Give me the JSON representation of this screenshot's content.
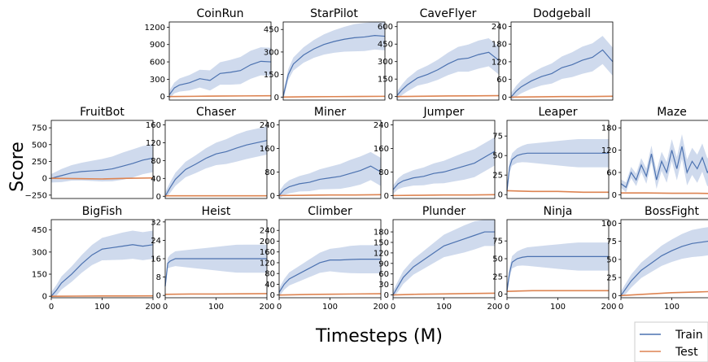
{
  "figure": {
    "ylabel": "Score",
    "xlabel": "Timesteps (M)"
  },
  "legend": {
    "placement": "bottom-right",
    "items": [
      {
        "label": "Train",
        "color": "#4c72b0"
      },
      {
        "label": "Test",
        "color": "#dd8452"
      }
    ]
  },
  "colors": {
    "train": "#4c72b0",
    "test": "#dd8452",
    "band": "#c7d3ea"
  },
  "chart_data": [
    {
      "type": "line",
      "title": "CoinRun",
      "xlim": [
        0,
        200
      ],
      "ylim": [
        -60,
        1290
      ],
      "xticks": [],
      "yticks": [
        0,
        300,
        600,
        900,
        1200
      ],
      "series": [
        {
          "name": "Train",
          "x": [
            0,
            10,
            20,
            40,
            60,
            80,
            100,
            120,
            140,
            160,
            180,
            200
          ],
          "y": [
            30,
            150,
            200,
            240,
            310,
            280,
            400,
            420,
            450,
            550,
            610,
            600
          ]
        },
        {
          "name": "Test",
          "x": [
            0,
            50,
            100,
            150,
            200
          ],
          "y": [
            0,
            5,
            10,
            12,
            15
          ]
        }
      ]
    },
    {
      "type": "line",
      "title": "StarPilot",
      "xlim": [
        0,
        200
      ],
      "ylim": [
        -20,
        500
      ],
      "xticks": [],
      "yticks": [
        0,
        150,
        300,
        450
      ],
      "series": [
        {
          "name": "Train",
          "x": [
            0,
            10,
            20,
            40,
            60,
            80,
            100,
            120,
            140,
            160,
            180,
            200
          ],
          "y": [
            5,
            150,
            220,
            280,
            320,
            350,
            370,
            385,
            395,
            400,
            410,
            405
          ]
        },
        {
          "name": "Test",
          "x": [
            0,
            50,
            100,
            150,
            200
          ],
          "y": [
            0,
            2,
            3,
            4,
            5
          ]
        }
      ]
    },
    {
      "type": "line",
      "title": "CaveFlyer",
      "xlim": [
        0,
        200
      ],
      "ylim": [
        -30,
        640
      ],
      "xticks": [],
      "yticks": [
        0,
        150,
        300,
        450,
        600
      ],
      "series": [
        {
          "name": "Train",
          "x": [
            0,
            10,
            20,
            40,
            60,
            80,
            100,
            120,
            140,
            160,
            180,
            200
          ],
          "y": [
            10,
            60,
            100,
            160,
            190,
            230,
            280,
            320,
            330,
            360,
            380,
            310
          ]
        },
        {
          "name": "Test",
          "x": [
            0,
            50,
            100,
            150,
            200
          ],
          "y": [
            0,
            3,
            5,
            6,
            8
          ]
        }
      ]
    },
    {
      "type": "line",
      "title": "Dodgeball",
      "xlim": [
        0,
        200
      ],
      "ylim": [
        -10,
        255
      ],
      "xticks": [],
      "yticks": [
        0,
        60,
        120,
        180,
        240
      ],
      "series": [
        {
          "name": "Train",
          "x": [
            0,
            10,
            20,
            40,
            60,
            80,
            100,
            120,
            140,
            160,
            180,
            200
          ],
          "y": [
            0,
            20,
            35,
            55,
            70,
            80,
            100,
            110,
            125,
            135,
            160,
            120
          ]
        },
        {
          "name": "Test",
          "x": [
            0,
            50,
            100,
            150,
            200
          ],
          "y": [
            0,
            1,
            2,
            2,
            3
          ]
        }
      ]
    },
    {
      "type": "line",
      "title": "FruitBot",
      "xlim": [
        0,
        200
      ],
      "ylim": [
        -300,
        860
      ],
      "xticks": [],
      "yticks": [
        -250,
        0,
        250,
        500,
        750
      ],
      "series": [
        {
          "name": "Train",
          "x": [
            0,
            10,
            20,
            40,
            60,
            80,
            100,
            120,
            140,
            160,
            180,
            200
          ],
          "y": [
            0,
            20,
            40,
            80,
            100,
            110,
            120,
            140,
            180,
            220,
            270,
            300
          ]
        },
        {
          "name": "Test",
          "x": [
            0,
            50,
            100,
            150,
            200
          ],
          "y": [
            0,
            -5,
            -10,
            0,
            5
          ]
        }
      ]
    },
    {
      "type": "line",
      "title": "Chaser",
      "xlim": [
        0,
        200
      ],
      "ylim": [
        -5,
        170
      ],
      "xticks": [],
      "yticks": [
        0,
        40,
        80,
        120,
        160
      ],
      "series": [
        {
          "name": "Train",
          "x": [
            0,
            10,
            20,
            40,
            60,
            80,
            100,
            120,
            140,
            160,
            180,
            200
          ],
          "y": [
            0,
            20,
            38,
            60,
            72,
            85,
            95,
            100,
            108,
            115,
            120,
            125
          ]
        },
        {
          "name": "Test",
          "x": [
            0,
            50,
            100,
            150,
            200
          ],
          "y": [
            1,
            1,
            1,
            1,
            1
          ]
        }
      ]
    },
    {
      "type": "line",
      "title": "Miner",
      "xlim": [
        0,
        200
      ],
      "ylim": [
        -10,
        255
      ],
      "xticks": [],
      "yticks": [
        0,
        80,
        160,
        240
      ],
      "series": [
        {
          "name": "Train",
          "x": [
            0,
            10,
            20,
            40,
            60,
            80,
            100,
            120,
            140,
            160,
            180,
            200
          ],
          "y": [
            0,
            20,
            30,
            40,
            45,
            55,
            60,
            65,
            75,
            85,
            100,
            80
          ]
        },
        {
          "name": "Test",
          "x": [
            0,
            50,
            100,
            150,
            200
          ],
          "y": [
            0,
            1,
            2,
            2,
            3
          ]
        }
      ]
    },
    {
      "type": "line",
      "title": "Jumper",
      "xlim": [
        0,
        200
      ],
      "ylim": [
        -10,
        255
      ],
      "xticks": [],
      "yticks": [
        0,
        80,
        160,
        240
      ],
      "series": [
        {
          "name": "Train",
          "x": [
            0,
            10,
            20,
            40,
            60,
            80,
            100,
            120,
            140,
            160,
            180,
            200
          ],
          "y": [
            20,
            40,
            50,
            60,
            65,
            75,
            80,
            90,
            100,
            110,
            130,
            150
          ]
        },
        {
          "name": "Test",
          "x": [
            0,
            50,
            100,
            150,
            200
          ],
          "y": [
            0,
            1,
            2,
            2,
            3
          ]
        }
      ]
    },
    {
      "type": "line",
      "title": "Leaper",
      "xlim": [
        0,
        200
      ],
      "ylim": [
        -5,
        95
      ],
      "xticks": [],
      "yticks": [
        0,
        25,
        50,
        75
      ],
      "series": [
        {
          "name": "Train",
          "x": [
            0,
            5,
            10,
            20,
            30,
            40,
            60,
            80,
            100,
            120,
            140,
            160,
            180,
            200
          ],
          "y": [
            5,
            35,
            45,
            50,
            52,
            53,
            53,
            53,
            53,
            53,
            53,
            53,
            53,
            53
          ]
        },
        {
          "name": "Test",
          "x": [
            0,
            50,
            100,
            150,
            200
          ],
          "y": [
            5,
            4,
            4,
            3,
            3
          ]
        }
      ]
    },
    {
      "type": "line",
      "title": "Maze",
      "xlim": [
        0,
        200
      ],
      "ylim": [
        -10,
        200
      ],
      "xticks": [],
      "yticks": [
        0,
        60,
        120,
        180
      ],
      "series": [
        {
          "name": "Train",
          "x": [
            0,
            10,
            20,
            30,
            40,
            50,
            60,
            70,
            80,
            90,
            100,
            110,
            120,
            130,
            140,
            150,
            160,
            170,
            180,
            190,
            200
          ],
          "y": [
            30,
            20,
            60,
            40,
            80,
            50,
            110,
            40,
            90,
            60,
            120,
            70,
            130,
            60,
            90,
            70,
            100,
            60,
            80,
            50,
            40
          ]
        },
        {
          "name": "Test",
          "x": [
            0,
            50,
            100,
            150,
            200
          ],
          "y": [
            5,
            5,
            4,
            4,
            3
          ]
        }
      ]
    },
    {
      "type": "line",
      "title": "BigFish",
      "xlim": [
        0,
        200
      ],
      "ylim": [
        -10,
        520
      ],
      "xticks": [
        0,
        100,
        200
      ],
      "yticks": [
        0,
        150,
        300,
        450
      ],
      "series": [
        {
          "name": "Train",
          "x": [
            0,
            10,
            20,
            40,
            60,
            80,
            100,
            120,
            140,
            160,
            180,
            200
          ],
          "y": [
            0,
            40,
            90,
            150,
            220,
            280,
            320,
            330,
            340,
            350,
            340,
            350
          ]
        },
        {
          "name": "Test",
          "x": [
            0,
            50,
            100,
            150,
            200
          ],
          "y": [
            0,
            1,
            2,
            2,
            3
          ]
        }
      ]
    },
    {
      "type": "line",
      "title": "Heist",
      "xlim": [
        0,
        200
      ],
      "ylim": [
        -1,
        33
      ],
      "xticks": [
        0,
        100,
        200
      ],
      "yticks": [
        0,
        8,
        16,
        24,
        32
      ],
      "series": [
        {
          "name": "Train",
          "x": [
            0,
            5,
            10,
            20,
            40,
            60,
            80,
            100,
            120,
            140,
            160,
            180,
            200
          ],
          "y": [
            4,
            14,
            15,
            16,
            16,
            16,
            16,
            16,
            16,
            16,
            16,
            16,
            16
          ]
        },
        {
          "name": "Test",
          "x": [
            0,
            50,
            100,
            150,
            200
          ],
          "y": [
            0.5,
            0.6,
            0.6,
            0.7,
            0.8
          ]
        }
      ]
    },
    {
      "type": "line",
      "title": "Climber",
      "xlim": [
        0,
        200
      ],
      "ylim": [
        -10,
        280
      ],
      "xticks": [
        0,
        100,
        200
      ],
      "yticks": [
        0,
        40,
        80,
        120,
        160,
        200,
        240
      ],
      "series": [
        {
          "name": "Train",
          "x": [
            0,
            10,
            20,
            40,
            60,
            80,
            100,
            120,
            140,
            160,
            180,
            200
          ],
          "y": [
            10,
            40,
            60,
            80,
            100,
            120,
            130,
            130,
            132,
            133,
            133,
            133
          ]
        },
        {
          "name": "Test",
          "x": [
            0,
            50,
            100,
            150,
            200
          ],
          "y": [
            0,
            2,
            3,
            4,
            5
          ]
        }
      ]
    },
    {
      "type": "line",
      "title": "Plunder",
      "xlim": [
        0,
        200
      ],
      "ylim": [
        -8,
        215
      ],
      "xticks": [
        0,
        100,
        200
      ],
      "yticks": [
        0,
        30,
        60,
        90,
        120,
        150,
        180
      ],
      "series": [
        {
          "name": "Train",
          "x": [
            0,
            10,
            20,
            40,
            60,
            80,
            100,
            120,
            140,
            160,
            180,
            200
          ],
          "y": [
            0,
            25,
            50,
            80,
            100,
            120,
            140,
            150,
            160,
            170,
            180,
            180
          ]
        },
        {
          "name": "Test",
          "x": [
            0,
            50,
            100,
            150,
            200
          ],
          "y": [
            0,
            2,
            3,
            4,
            5
          ]
        }
      ]
    },
    {
      "type": "line",
      "title": "Ninja",
      "xlim": [
        0,
        200
      ],
      "ylim": [
        -5,
        105
      ],
      "xticks": [
        0,
        100,
        200
      ],
      "yticks": [
        0,
        25,
        50,
        75
      ],
      "series": [
        {
          "name": "Train",
          "x": [
            0,
            5,
            10,
            20,
            30,
            40,
            60,
            80,
            100,
            120,
            140,
            160,
            180,
            200
          ],
          "y": [
            5,
            30,
            45,
            50,
            52,
            53,
            53,
            53,
            53,
            53,
            53,
            53,
            53,
            53
          ]
        },
        {
          "name": "Test",
          "x": [
            0,
            50,
            100,
            150,
            200
          ],
          "y": [
            4,
            5,
            5,
            5,
            5
          ]
        }
      ]
    },
    {
      "type": "line",
      "title": "BossFight",
      "xlim": [
        0,
        200
      ],
      "ylim": [
        -3,
        105
      ],
      "xticks": [
        0,
        100,
        200
      ],
      "yticks": [
        0,
        25,
        50,
        75,
        100
      ],
      "series": [
        {
          "name": "Train",
          "x": [
            0,
            10,
            20,
            40,
            60,
            80,
            100,
            120,
            140,
            160,
            180,
            200
          ],
          "y": [
            0,
            10,
            20,
            35,
            45,
            55,
            62,
            68,
            72,
            74,
            76,
            78
          ]
        },
        {
          "name": "Test",
          "x": [
            0,
            50,
            100,
            150,
            200
          ],
          "y": [
            0,
            2,
            4,
            5,
            6
          ]
        }
      ]
    }
  ]
}
